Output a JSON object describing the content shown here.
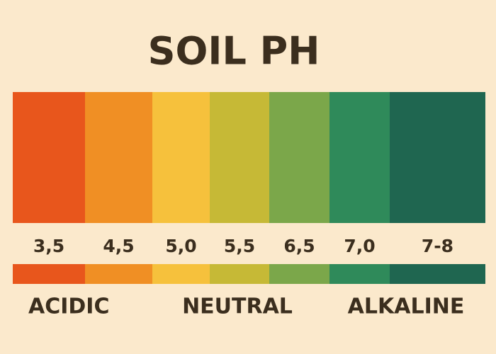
{
  "title": "SOIL PH",
  "segments": [
    {
      "label": "3,5",
      "color": "#e8561c"
    },
    {
      "label": "4,5",
      "color": "#f08f24"
    },
    {
      "label": "5,0",
      "color": "#f6c13c"
    },
    {
      "label": "5,5",
      "color": "#c6b936"
    },
    {
      "label": "6,5",
      "color": "#7ba74a"
    },
    {
      "label": "7,0",
      "color": "#2f8a5a"
    },
    {
      "label": "7-8",
      "color": "#1f6650"
    }
  ],
  "categories": [
    "ACIDIC",
    "NEUTRAL",
    "ALKALINE"
  ]
}
